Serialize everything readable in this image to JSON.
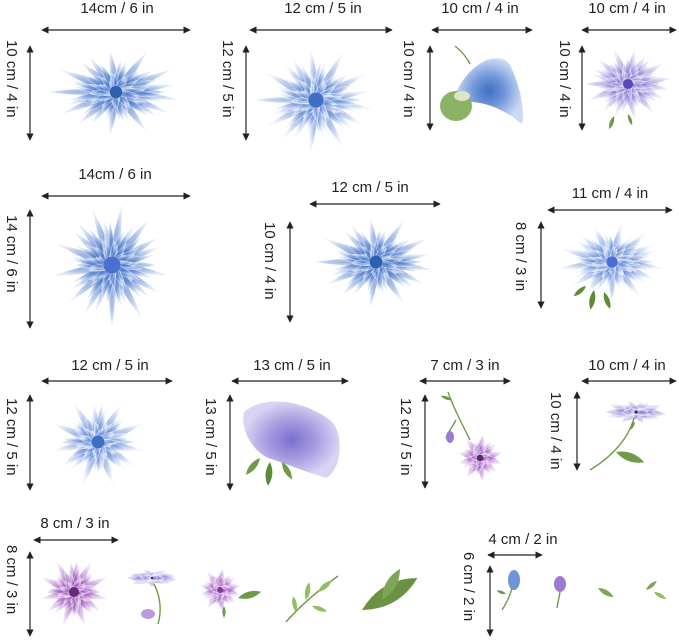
{
  "stickers": [
    {
      "width_label": "14cm / 6 in",
      "height_label": "10 cm / 4 in"
    },
    {
      "width_label": "12 cm / 5 in",
      "height_label": "12 cm / 5 in"
    },
    {
      "width_label": "10 cm / 4 in",
      "height_label": "10 cm / 4 in"
    },
    {
      "width_label": "10 cm / 4 in",
      "height_label": "10 cm / 4 in"
    },
    {
      "width_label": "14cm / 6 in",
      "height_label": "14 cm / 6 in"
    },
    {
      "width_label": "12 cm / 5 in",
      "height_label": "10 cm / 4 in"
    },
    {
      "width_label": "11 cm / 4 in",
      "height_label": "8 cm / 3 in"
    },
    {
      "width_label": "12 cm / 5 in",
      "height_label": "12 cm / 5 in"
    },
    {
      "width_label": "13 cm / 5 in",
      "height_label": "13 cm / 5 in"
    },
    {
      "width_label": "7 cm / 3 in",
      "height_label": "12 cm / 5 in"
    },
    {
      "width_label": "10 cm / 4 in",
      "height_label": "10 cm / 4 in"
    },
    {
      "width_label": "8 cm / 3 in",
      "height_label": "8 cm / 3 in"
    },
    {
      "width_label": "4 cm / 2 in",
      "height_label": "6 cm / 2 in"
    }
  ],
  "colors": {
    "petal_blue": "#6f94d8",
    "petal_light": "#b9cdf0",
    "petal_lilac": "#a79be0",
    "petal_purple": "#9b7cd0",
    "leaf_green": "#6f9a4a",
    "dimension_line": "#222222"
  }
}
